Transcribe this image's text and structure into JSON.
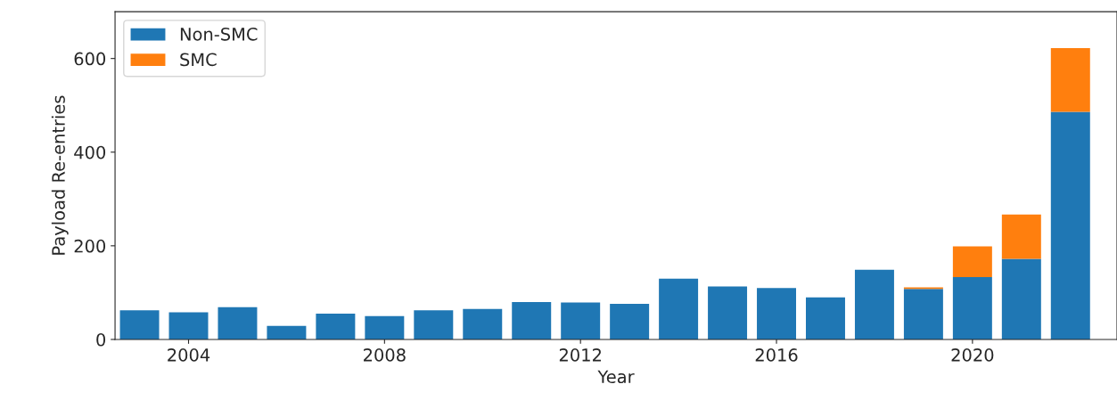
{
  "chart_data": {
    "type": "bar",
    "stacked": true,
    "xlabel": "Year",
    "ylabel": "Payload Re-entries",
    "x": [
      2003,
      2004,
      2005,
      2006,
      2007,
      2008,
      2009,
      2010,
      2011,
      2012,
      2013,
      2014,
      2015,
      2016,
      2017,
      2018,
      2019,
      2020,
      2021,
      2022
    ],
    "series": [
      {
        "name": "Non-SMC",
        "color": "#1f77b4",
        "values": [
          62,
          58,
          69,
          29,
          55,
          50,
          62,
          65,
          80,
          79,
          76,
          130,
          113,
          110,
          90,
          149,
          108,
          133,
          172,
          486
        ]
      },
      {
        "name": "SMC",
        "color": "#ff7f0e",
        "values": [
          null,
          null,
          null,
          null,
          null,
          null,
          null,
          null,
          null,
          null,
          null,
          null,
          null,
          null,
          null,
          null,
          3,
          66,
          95,
          136
        ]
      }
    ],
    "xlim": [
      2002.5,
      2022.95
    ],
    "xticks": [
      2004,
      2008,
      2012,
      2016,
      2020
    ],
    "ylim": [
      0,
      700
    ],
    "yticks": [
      0,
      200,
      400,
      600
    ],
    "legend": "upper left",
    "grid": false
  }
}
